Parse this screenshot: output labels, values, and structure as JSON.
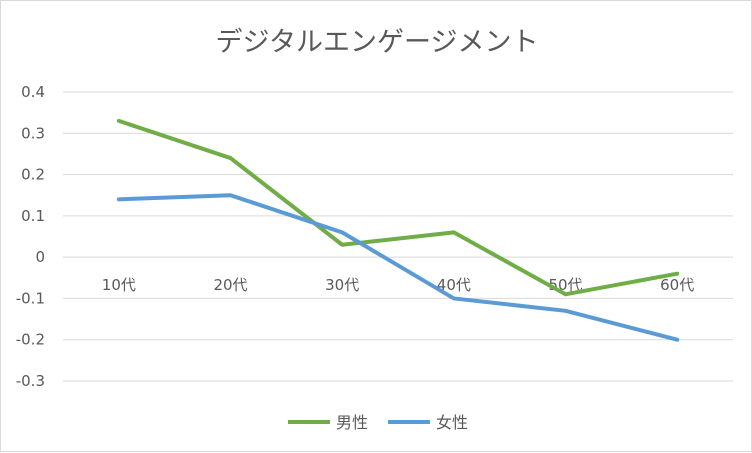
{
  "chart_data": {
    "type": "line",
    "title": "デジタルエンゲージメント",
    "categories": [
      "10代",
      "20代",
      "30代",
      "40代",
      "50代",
      "60代"
    ],
    "series": [
      {
        "name": "男性",
        "color": "#70ad47",
        "values": [
          0.33,
          0.24,
          0.03,
          0.06,
          -0.09,
          -0.04
        ]
      },
      {
        "name": "女性",
        "color": "#5b9bd5",
        "values": [
          0.14,
          0.15,
          0.06,
          -0.1,
          -0.13,
          -0.2
        ]
      }
    ],
    "ylim": [
      -0.3,
      0.4
    ],
    "yticks": [
      "0.4",
      "0.3",
      "0.2",
      "0.1",
      "0",
      "-0.1",
      "-0.2",
      "-0.3"
    ],
    "grid": true,
    "legend": "bottom",
    "gridline_color": "#d9d9d9"
  }
}
